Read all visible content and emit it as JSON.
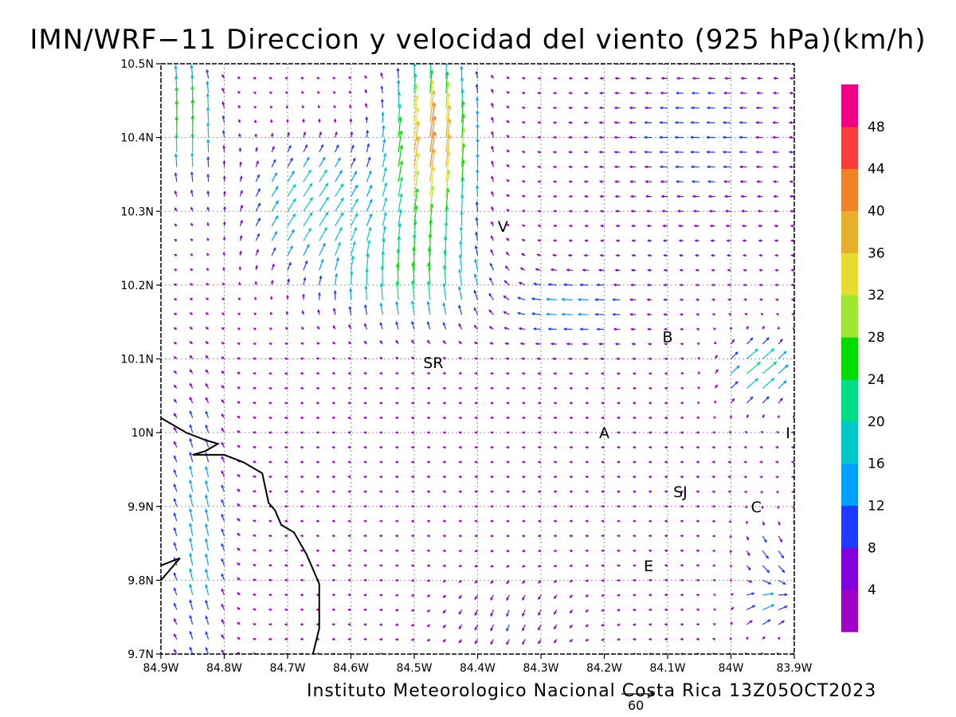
{
  "title": "IMN/WRF−11 Direccion y velocidad del viento (925 hPa)(km/h)",
  "footer": "Instituto Meteorologico Nacional Costa Rica 13Z05OCT2023",
  "colors": {
    "frame": "#000000",
    "grid": "#9a9a9a",
    "coast": "#000000",
    "scale": [
      "#a000c8",
      "#8200dc",
      "#1e3cff",
      "#00a0ff",
      "#00c8c8",
      "#00dc82",
      "#00dc00",
      "#a0e632",
      "#e6dc32",
      "#e6af2d",
      "#f08228",
      "#fa3c3c",
      "#f00082"
    ]
  },
  "chart_data": {
    "type": "vector-field",
    "variable": "wind direction and speed at 925 hPa",
    "units": "km/h",
    "xlim": [
      -84.9,
      -83.9
    ],
    "ylim": [
      9.7,
      10.5
    ],
    "x_tick_values": [
      -84.9,
      -84.8,
      -84.7,
      -84.6,
      -84.5,
      -84.4,
      -84.3,
      -84.2,
      -84.1,
      -84.0,
      -83.9
    ],
    "x_tick_labels": [
      "84.9W",
      "84.8W",
      "84.7W",
      "84.6W",
      "84.5W",
      "84.4W",
      "84.3W",
      "84.2W",
      "84.1W",
      "84W",
      "83.9W"
    ],
    "y_tick_values": [
      9.7,
      9.8,
      9.9,
      10.0,
      10.1,
      10.2,
      10.3,
      10.4,
      10.5
    ],
    "y_tick_labels": [
      "9.7N",
      "9.8N",
      "9.9N",
      "10N",
      "10.1N",
      "10.2N",
      "10.3N",
      "10.4N",
      "10.5N"
    ],
    "grid": true,
    "colorbar": {
      "position": "right",
      "boundaries": [
        0,
        4,
        8,
        12,
        16,
        20,
        24,
        28,
        32,
        36,
        40,
        44,
        48,
        52
      ],
      "tick_labels": [
        "4",
        "8",
        "12",
        "16",
        "20",
        "24",
        "28",
        "32",
        "36",
        "40",
        "44",
        "48"
      ]
    },
    "reference_vector": {
      "speed": 60,
      "label": "60"
    },
    "place_labels": [
      {
        "text": "V",
        "lon": -84.36,
        "lat": 10.28
      },
      {
        "text": "SR",
        "lon": -84.47,
        "lat": 10.095
      },
      {
        "text": "B",
        "lon": -84.1,
        "lat": 10.13
      },
      {
        "text": "A",
        "lon": -84.2,
        "lat": 10.0
      },
      {
        "text": "I",
        "lon": -83.91,
        "lat": 10.0
      },
      {
        "text": "SJ",
        "lon": -84.08,
        "lat": 9.92
      },
      {
        "text": "C",
        "lon": -83.96,
        "lat": 9.9
      },
      {
        "text": "E",
        "lon": -84.13,
        "lat": 9.82
      }
    ],
    "coastline": [
      [
        -84.9,
        10.02
      ],
      [
        -84.86,
        10.0
      ],
      [
        -84.83,
        9.99
      ],
      [
        -84.81,
        9.985
      ],
      [
        -84.83,
        9.975
      ],
      [
        -84.85,
        9.97
      ],
      [
        -84.82,
        9.97
      ],
      [
        -84.8,
        9.97
      ],
      [
        -84.77,
        9.96
      ],
      [
        -84.74,
        9.945
      ],
      [
        -84.73,
        9.905
      ],
      [
        -84.72,
        9.895
      ],
      [
        -84.71,
        9.875
      ],
      [
        -84.69,
        9.865
      ],
      [
        -84.67,
        9.835
      ],
      [
        -84.66,
        9.815
      ],
      [
        -84.65,
        9.795
      ],
      [
        -84.65,
        9.735
      ],
      [
        -84.66,
        9.7
      ]
    ],
    "coastline_small": [
      [
        -84.9,
        9.82
      ],
      [
        -84.87,
        9.83
      ],
      [
        -84.9,
        9.8
      ]
    ]
  }
}
